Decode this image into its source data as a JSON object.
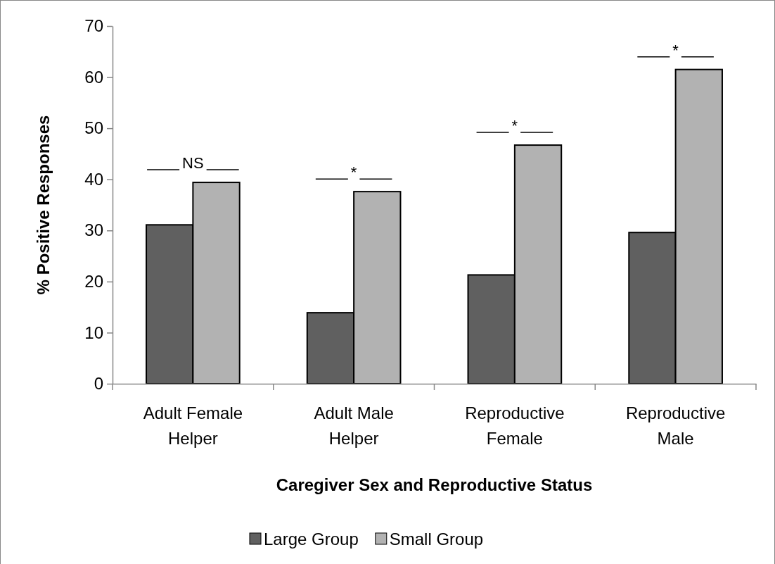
{
  "chart_data": {
    "type": "bar",
    "xlabel": "Caregiver Sex and Reproductive Status",
    "ylabel": "% Positive Responses",
    "categories": [
      "Adult Female Helper",
      "Adult Male Helper",
      "Reproductive Female",
      "Reproductive Male"
    ],
    "series": [
      {
        "name": "Large Group",
        "color": "#606060",
        "values": [
          31.1,
          13.9,
          21.3,
          29.6
        ]
      },
      {
        "name": "Small Group",
        "color": "#b2b2b2",
        "values": [
          39.4,
          37.6,
          46.7,
          61.5
        ]
      }
    ],
    "ylim": [
      0,
      70
    ],
    "yticks": [
      0,
      10,
      20,
      30,
      40,
      50,
      60,
      70
    ],
    "grid": false,
    "legend": "bottom",
    "annotations": [
      "NS",
      "*",
      "*",
      "*"
    ]
  }
}
